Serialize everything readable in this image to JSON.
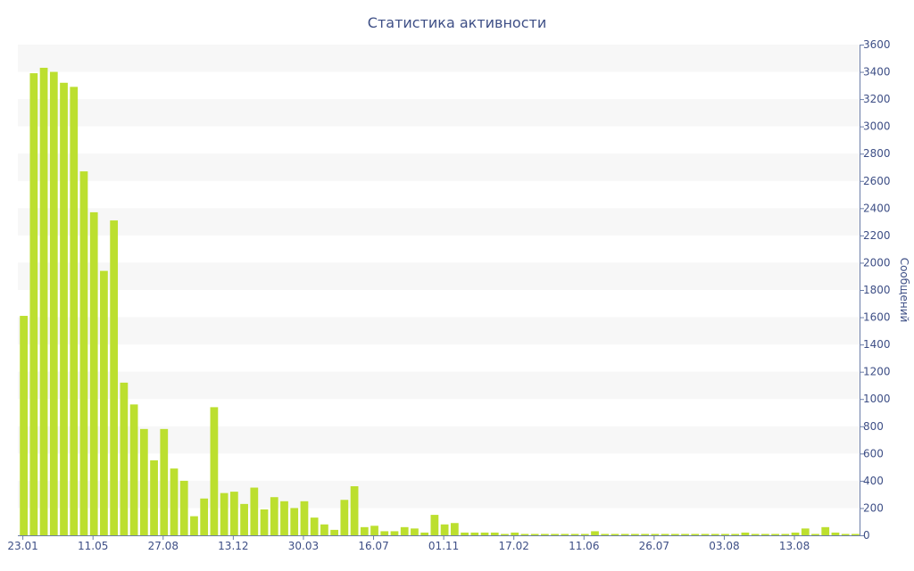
{
  "chart_data": {
    "type": "bar",
    "title": "Статистика активности",
    "ylabel": "Сообщений",
    "xlabel": "",
    "ylim": [
      0,
      3600
    ],
    "y_ticks": [
      0,
      200,
      400,
      600,
      800,
      1000,
      1200,
      1400,
      1600,
      1800,
      2000,
      2200,
      2400,
      2600,
      2800,
      3000,
      3200,
      3400,
      3600
    ],
    "x_tick_labels": [
      {
        "label": "23.01",
        "index": 0
      },
      {
        "label": "11.05",
        "index": 7
      },
      {
        "label": "27.08",
        "index": 14
      },
      {
        "label": "13.12",
        "index": 21
      },
      {
        "label": "30.03",
        "index": 28
      },
      {
        "label": "16.07",
        "index": 35
      },
      {
        "label": "01.11",
        "index": 42
      },
      {
        "label": "17.02",
        "index": 49
      },
      {
        "label": "11.06",
        "index": 56
      },
      {
        "label": "26.07",
        "index": 63
      },
      {
        "label": "03.08",
        "index": 70
      },
      {
        "label": "13.08",
        "index": 77
      }
    ],
    "grid": "alternating horizontal bands",
    "legend": "none",
    "bar_color": "#bcdf2f",
    "band_color": "#f7f7f7",
    "text_color": "#3e4f86",
    "axis_color": "#6b7da8",
    "values": [
      1610,
      3390,
      3430,
      3400,
      3320,
      3290,
      2670,
      2370,
      1940,
      2310,
      1120,
      960,
      780,
      550,
      780,
      490,
      400,
      140,
      270,
      940,
      310,
      320,
      230,
      350,
      190,
      280,
      250,
      200,
      250,
      130,
      80,
      40,
      260,
      360,
      60,
      70,
      30,
      30,
      60,
      50,
      20,
      150,
      80,
      90,
      20,
      20,
      20,
      20,
      10,
      20,
      10,
      10,
      10,
      10,
      10,
      10,
      10,
      30,
      10,
      10,
      10,
      10,
      10,
      10,
      10,
      10,
      10,
      10,
      10,
      10,
      10,
      10,
      20,
      10,
      10,
      10,
      10,
      20,
      50,
      10,
      60,
      20,
      10,
      10
    ]
  }
}
